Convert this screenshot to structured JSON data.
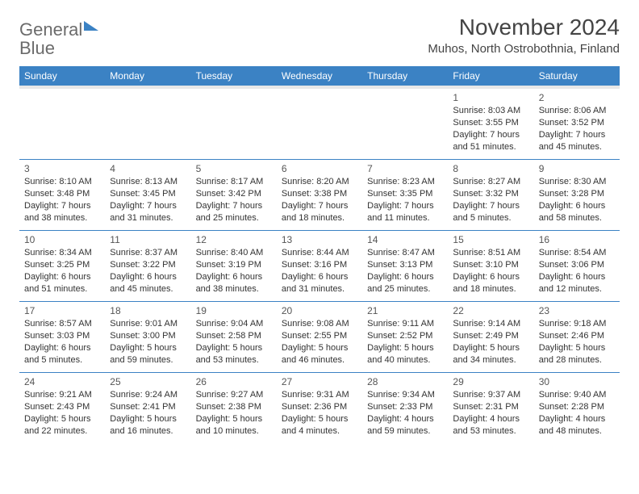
{
  "logo": {
    "word1": "General",
    "word2": "Blue"
  },
  "title": "November 2024",
  "location": "Muhos, North Ostrobothnia, Finland",
  "daynames": [
    "Sunday",
    "Monday",
    "Tuesday",
    "Wednesday",
    "Thursday",
    "Friday",
    "Saturday"
  ],
  "colors": {
    "header_bg": "#3b82c4",
    "header_text": "#ffffff",
    "cell_border": "#3b82c4",
    "gray_band": "#e8e8e8",
    "text": "#333333"
  },
  "weeks": [
    [
      {
        "day": "",
        "sunrise": "",
        "sunset": "",
        "daylight": ""
      },
      {
        "day": "",
        "sunrise": "",
        "sunset": "",
        "daylight": ""
      },
      {
        "day": "",
        "sunrise": "",
        "sunset": "",
        "daylight": ""
      },
      {
        "day": "",
        "sunrise": "",
        "sunset": "",
        "daylight": ""
      },
      {
        "day": "",
        "sunrise": "",
        "sunset": "",
        "daylight": ""
      },
      {
        "day": "1",
        "sunrise": "Sunrise: 8:03 AM",
        "sunset": "Sunset: 3:55 PM",
        "daylight": "Daylight: 7 hours and 51 minutes."
      },
      {
        "day": "2",
        "sunrise": "Sunrise: 8:06 AM",
        "sunset": "Sunset: 3:52 PM",
        "daylight": "Daylight: 7 hours and 45 minutes."
      }
    ],
    [
      {
        "day": "3",
        "sunrise": "Sunrise: 8:10 AM",
        "sunset": "Sunset: 3:48 PM",
        "daylight": "Daylight: 7 hours and 38 minutes."
      },
      {
        "day": "4",
        "sunrise": "Sunrise: 8:13 AM",
        "sunset": "Sunset: 3:45 PM",
        "daylight": "Daylight: 7 hours and 31 minutes."
      },
      {
        "day": "5",
        "sunrise": "Sunrise: 8:17 AM",
        "sunset": "Sunset: 3:42 PM",
        "daylight": "Daylight: 7 hours and 25 minutes."
      },
      {
        "day": "6",
        "sunrise": "Sunrise: 8:20 AM",
        "sunset": "Sunset: 3:38 PM",
        "daylight": "Daylight: 7 hours and 18 minutes."
      },
      {
        "day": "7",
        "sunrise": "Sunrise: 8:23 AM",
        "sunset": "Sunset: 3:35 PM",
        "daylight": "Daylight: 7 hours and 11 minutes."
      },
      {
        "day": "8",
        "sunrise": "Sunrise: 8:27 AM",
        "sunset": "Sunset: 3:32 PM",
        "daylight": "Daylight: 7 hours and 5 minutes."
      },
      {
        "day": "9",
        "sunrise": "Sunrise: 8:30 AM",
        "sunset": "Sunset: 3:28 PM",
        "daylight": "Daylight: 6 hours and 58 minutes."
      }
    ],
    [
      {
        "day": "10",
        "sunrise": "Sunrise: 8:34 AM",
        "sunset": "Sunset: 3:25 PM",
        "daylight": "Daylight: 6 hours and 51 minutes."
      },
      {
        "day": "11",
        "sunrise": "Sunrise: 8:37 AM",
        "sunset": "Sunset: 3:22 PM",
        "daylight": "Daylight: 6 hours and 45 minutes."
      },
      {
        "day": "12",
        "sunrise": "Sunrise: 8:40 AM",
        "sunset": "Sunset: 3:19 PM",
        "daylight": "Daylight: 6 hours and 38 minutes."
      },
      {
        "day": "13",
        "sunrise": "Sunrise: 8:44 AM",
        "sunset": "Sunset: 3:16 PM",
        "daylight": "Daylight: 6 hours and 31 minutes."
      },
      {
        "day": "14",
        "sunrise": "Sunrise: 8:47 AM",
        "sunset": "Sunset: 3:13 PM",
        "daylight": "Daylight: 6 hours and 25 minutes."
      },
      {
        "day": "15",
        "sunrise": "Sunrise: 8:51 AM",
        "sunset": "Sunset: 3:10 PM",
        "daylight": "Daylight: 6 hours and 18 minutes."
      },
      {
        "day": "16",
        "sunrise": "Sunrise: 8:54 AM",
        "sunset": "Sunset: 3:06 PM",
        "daylight": "Daylight: 6 hours and 12 minutes."
      }
    ],
    [
      {
        "day": "17",
        "sunrise": "Sunrise: 8:57 AM",
        "sunset": "Sunset: 3:03 PM",
        "daylight": "Daylight: 6 hours and 5 minutes."
      },
      {
        "day": "18",
        "sunrise": "Sunrise: 9:01 AM",
        "sunset": "Sunset: 3:00 PM",
        "daylight": "Daylight: 5 hours and 59 minutes."
      },
      {
        "day": "19",
        "sunrise": "Sunrise: 9:04 AM",
        "sunset": "Sunset: 2:58 PM",
        "daylight": "Daylight: 5 hours and 53 minutes."
      },
      {
        "day": "20",
        "sunrise": "Sunrise: 9:08 AM",
        "sunset": "Sunset: 2:55 PM",
        "daylight": "Daylight: 5 hours and 46 minutes."
      },
      {
        "day": "21",
        "sunrise": "Sunrise: 9:11 AM",
        "sunset": "Sunset: 2:52 PM",
        "daylight": "Daylight: 5 hours and 40 minutes."
      },
      {
        "day": "22",
        "sunrise": "Sunrise: 9:14 AM",
        "sunset": "Sunset: 2:49 PM",
        "daylight": "Daylight: 5 hours and 34 minutes."
      },
      {
        "day": "23",
        "sunrise": "Sunrise: 9:18 AM",
        "sunset": "Sunset: 2:46 PM",
        "daylight": "Daylight: 5 hours and 28 minutes."
      }
    ],
    [
      {
        "day": "24",
        "sunrise": "Sunrise: 9:21 AM",
        "sunset": "Sunset: 2:43 PM",
        "daylight": "Daylight: 5 hours and 22 minutes."
      },
      {
        "day": "25",
        "sunrise": "Sunrise: 9:24 AM",
        "sunset": "Sunset: 2:41 PM",
        "daylight": "Daylight: 5 hours and 16 minutes."
      },
      {
        "day": "26",
        "sunrise": "Sunrise: 9:27 AM",
        "sunset": "Sunset: 2:38 PM",
        "daylight": "Daylight: 5 hours and 10 minutes."
      },
      {
        "day": "27",
        "sunrise": "Sunrise: 9:31 AM",
        "sunset": "Sunset: 2:36 PM",
        "daylight": "Daylight: 5 hours and 4 minutes."
      },
      {
        "day": "28",
        "sunrise": "Sunrise: 9:34 AM",
        "sunset": "Sunset: 2:33 PM",
        "daylight": "Daylight: 4 hours and 59 minutes."
      },
      {
        "day": "29",
        "sunrise": "Sunrise: 9:37 AM",
        "sunset": "Sunset: 2:31 PM",
        "daylight": "Daylight: 4 hours and 53 minutes."
      },
      {
        "day": "30",
        "sunrise": "Sunrise: 9:40 AM",
        "sunset": "Sunset: 2:28 PM",
        "daylight": "Daylight: 4 hours and 48 minutes."
      }
    ]
  ]
}
